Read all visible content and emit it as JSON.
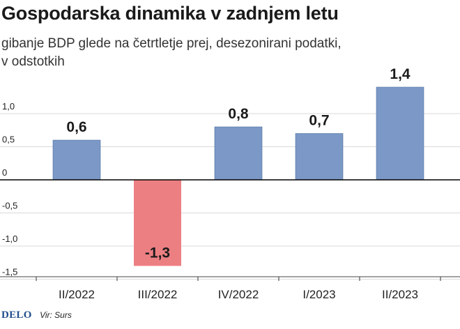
{
  "header": {
    "title": "Gospodarska dinamika v zadnjem letu",
    "subtitle_line1": "gibanje BDP glede na četrtletje prej, desezonirani podatki,",
    "subtitle_line2": "v odstotkih"
  },
  "footer": {
    "logo": "DELO",
    "source": "Vir: Surs"
  },
  "colors": {
    "positive_bar": "#7b98c6",
    "negative_bar": "#ec7f82",
    "bar_outline": "#4d6f9e",
    "grid": "#d9d9d9",
    "zero_line": "#000000"
  },
  "chart_data": {
    "type": "bar",
    "categories": [
      "II/2022",
      "III/2022",
      "IV/2022",
      "I/2023",
      "II/2023"
    ],
    "values": [
      0.6,
      -1.3,
      0.8,
      0.7,
      1.4
    ],
    "value_labels": [
      "0,6",
      "-1,3",
      "0,8",
      "0,7",
      "1,4"
    ],
    "y_ticks": [
      1.0,
      0.5,
      0,
      -0.5,
      -1.0,
      -1.5
    ],
    "y_tick_labels": [
      "1,0",
      "0,5",
      "0",
      "-0,5",
      "-1,0",
      "-1,5"
    ],
    "ylim": [
      -1.5,
      1.5
    ],
    "grid": true,
    "legend": "none"
  }
}
